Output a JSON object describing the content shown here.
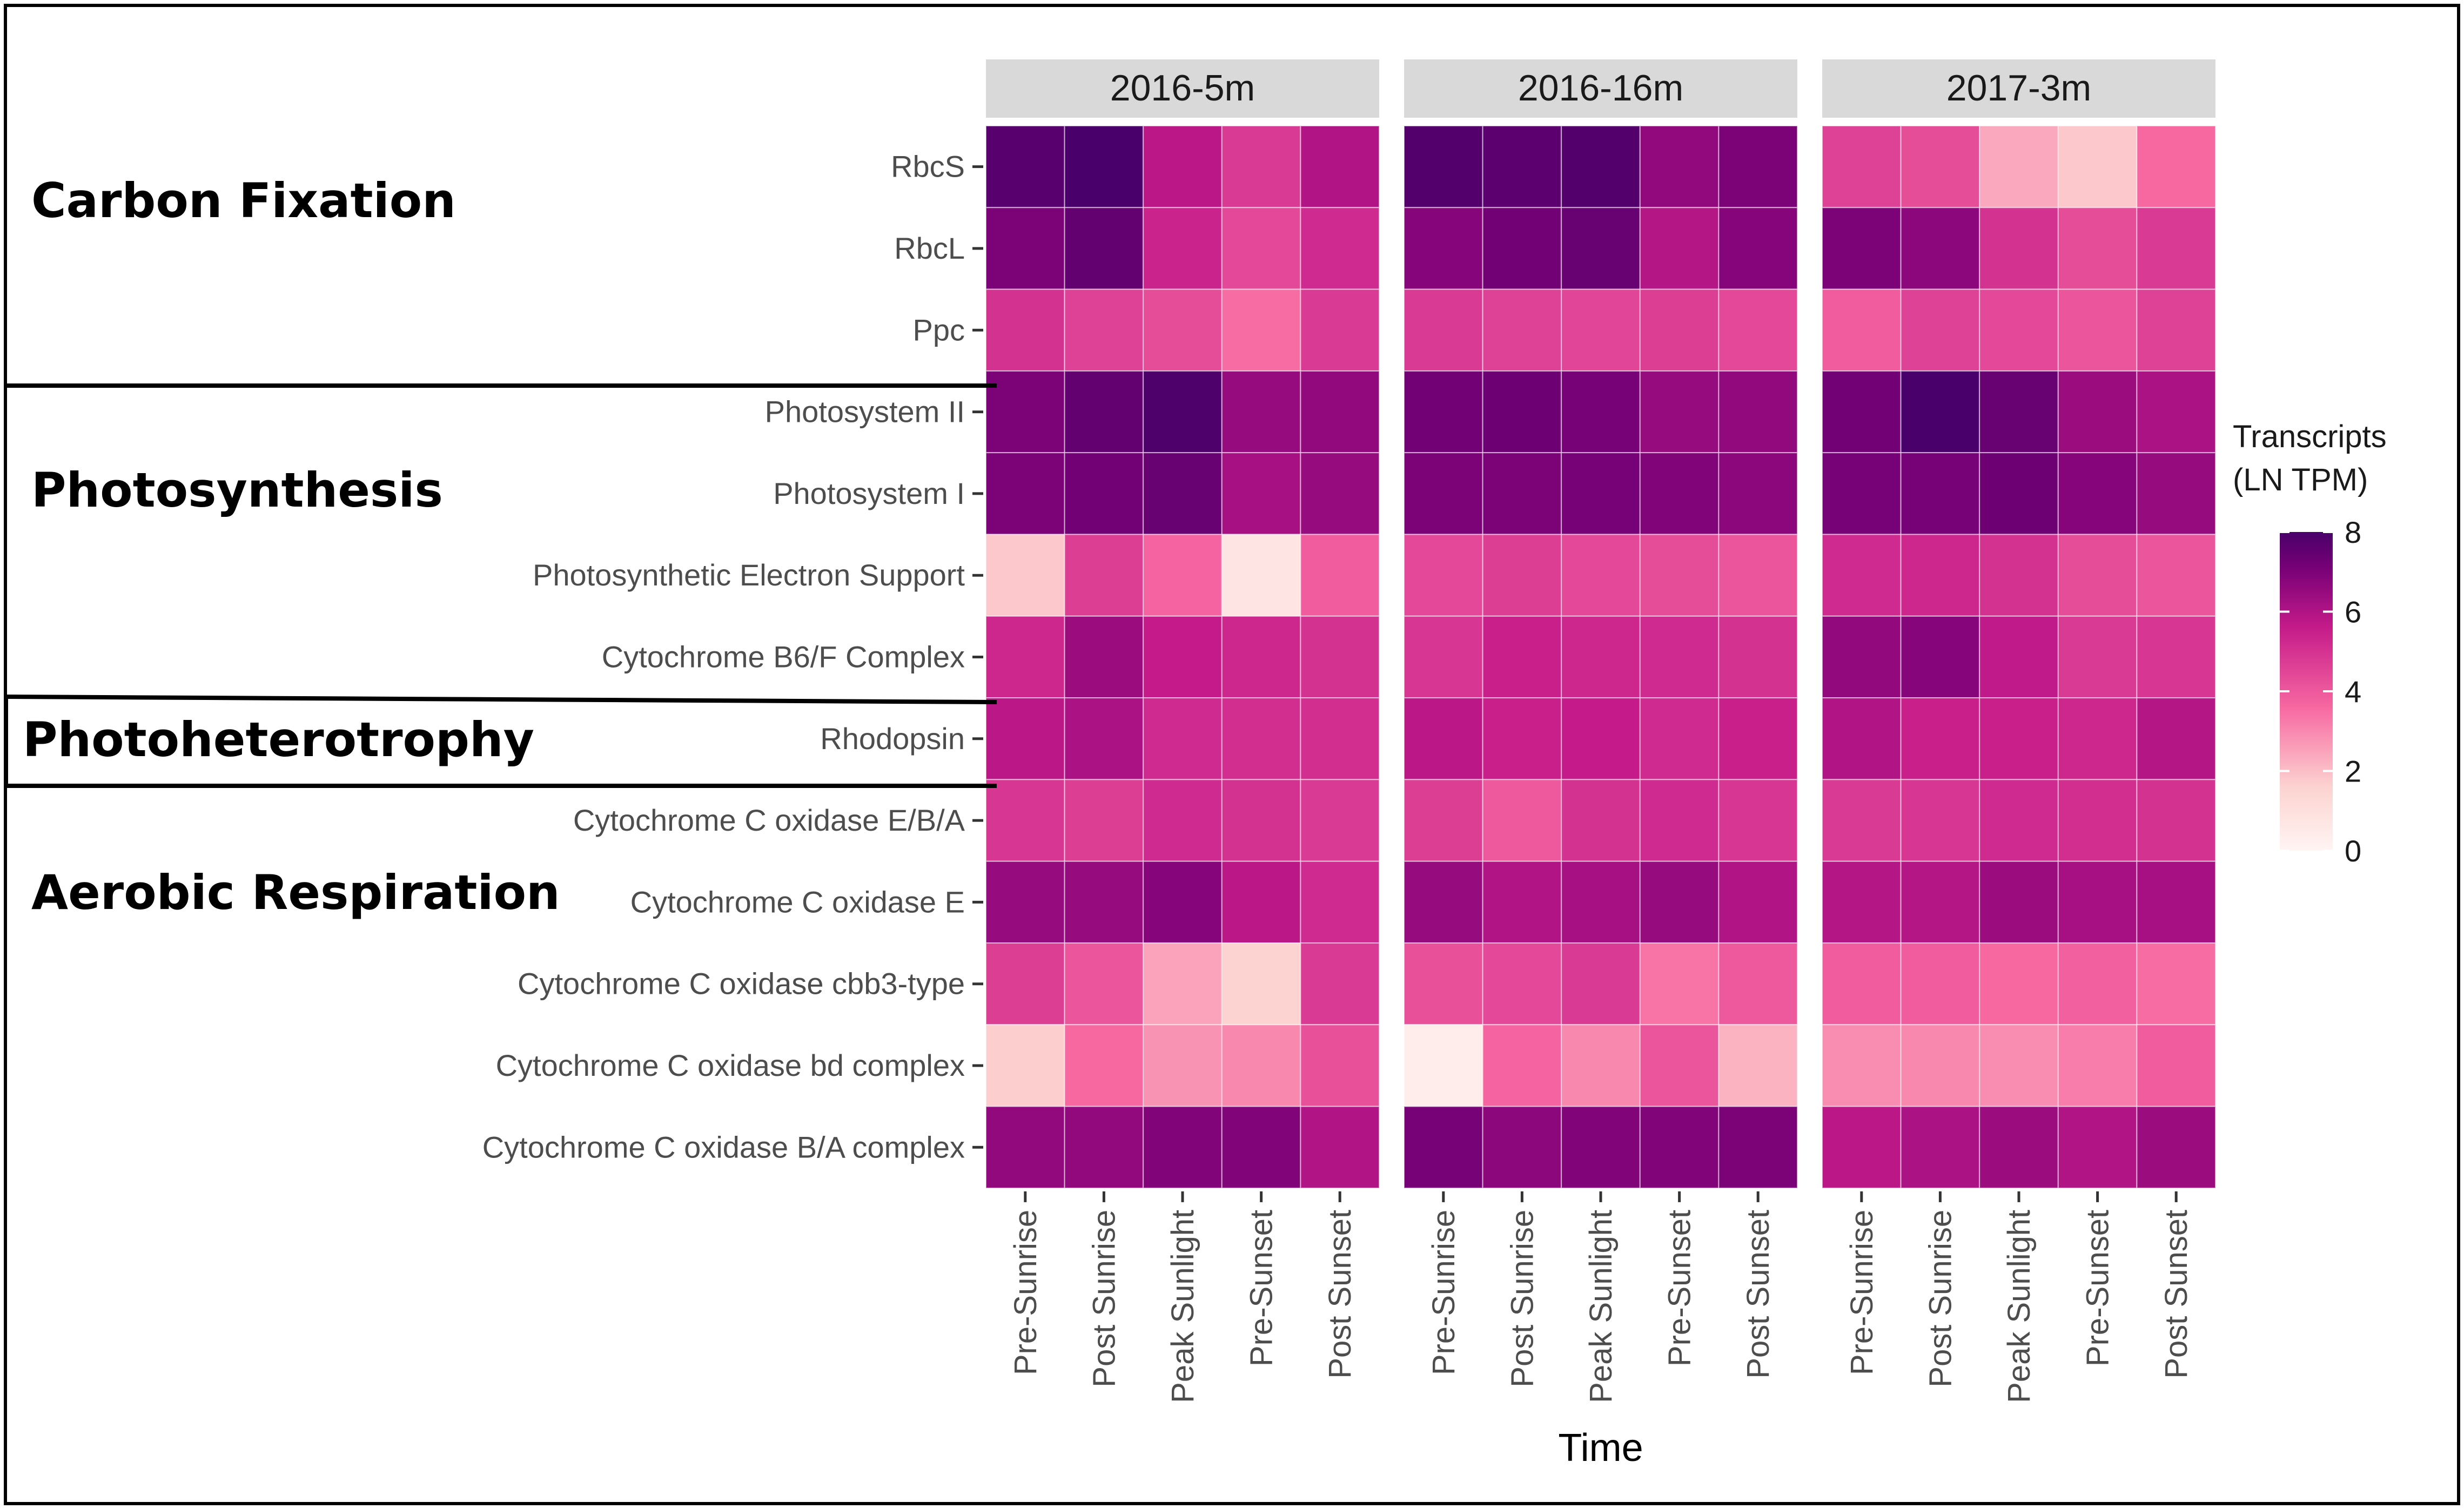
{
  "chart_data": {
    "type": "heatmap",
    "xlabel": "Time",
    "legend": {
      "title_line1": "Transcripts",
      "title_line2": "(LN TPM)",
      "min": 0,
      "max": 8,
      "ticks": [
        "0",
        "2",
        "4",
        "6",
        "8"
      ],
      "colors": [
        "#fff5f3",
        "#fbc5c5",
        "#f768a1",
        "#c51b8a",
        "#7a0177",
        "#49006a"
      ]
    },
    "panels": [
      "2016-5m",
      "2016-16m",
      "2017-3m"
    ],
    "columns": [
      "Pre-Sunrise",
      "Post Sunrise",
      "Peak Sunlight",
      "Pre-Sunset",
      "Post Sunset"
    ],
    "rows": [
      "RbcS",
      "RbcL",
      "Ppc",
      "Photosystem II",
      "Photosystem I",
      "Photosynthetic Electron Support",
      "Cytochrome B6/F Complex",
      "Rhodopsin",
      "Cytochrome C oxidase E/B/A",
      "Cytochrome C oxidase E",
      "Cytochrome C oxidase cbb3-type",
      "Cytochrome C oxidase bd complex",
      "Cytochrome C oxidase B/A complex"
    ],
    "groups": [
      {
        "label": "Carbon Fixation"
      },
      {
        "label": "Photosynthesis"
      },
      {
        "label": "Photoheterotrophy"
      },
      {
        "label": "Aerobic Respiration"
      }
    ],
    "values": [
      [
        [
          7.7,
          8.0,
          5.8,
          4.8,
          6.0
        ],
        [
          7.0,
          7.5,
          5.4,
          4.4,
          5.2
        ],
        [
          5.0,
          4.6,
          4.3,
          3.5,
          4.8
        ],
        [
          7.0,
          7.5,
          7.9,
          6.5,
          6.6
        ],
        [
          7.0,
          7.2,
          7.4,
          6.2,
          6.5
        ],
        [
          1.8,
          4.7,
          3.7,
          0.8,
          3.9
        ],
        [
          5.3,
          6.4,
          5.6,
          5.3,
          5.0
        ],
        [
          5.8,
          6.1,
          5.2,
          5.1,
          5.1
        ],
        [
          4.9,
          4.7,
          5.2,
          5.0,
          4.8
        ],
        [
          6.5,
          6.5,
          6.8,
          5.8,
          5.2
        ],
        [
          4.7,
          4.1,
          2.5,
          1.6,
          4.8
        ],
        [
          1.7,
          3.6,
          2.8,
          3.0,
          4.2
        ],
        [
          6.6,
          6.6,
          6.9,
          6.9,
          6.0
        ]
      ],
      [
        [
          7.8,
          7.6,
          7.8,
          6.6,
          7.0
        ],
        [
          6.8,
          7.2,
          7.4,
          5.9,
          6.8
        ],
        [
          4.8,
          4.6,
          4.5,
          4.7,
          4.4
        ],
        [
          7.2,
          7.3,
          7.1,
          6.5,
          6.6
        ],
        [
          7.0,
          7.0,
          7.1,
          6.9,
          6.7
        ],
        [
          4.4,
          4.7,
          4.4,
          4.3,
          4.1
        ],
        [
          4.9,
          5.5,
          5.3,
          5.2,
          5.0
        ],
        [
          5.8,
          5.5,
          5.6,
          5.2,
          5.5
        ],
        [
          4.7,
          4.0,
          5.0,
          5.2,
          4.9
        ],
        [
          6.5,
          6.0,
          6.2,
          6.5,
          6.0
        ],
        [
          4.2,
          4.4,
          4.8,
          3.4,
          4.0
        ],
        [
          0.4,
          3.7,
          3.0,
          4.1,
          2.2
        ],
        [
          7.1,
          6.7,
          6.9,
          6.9,
          7.0
        ]
      ],
      [
        [
          4.6,
          4.3,
          2.4,
          1.8,
          3.6
        ],
        [
          7.0,
          6.7,
          5.0,
          4.3,
          4.8
        ],
        [
          3.9,
          4.6,
          4.4,
          4.1,
          4.6
        ],
        [
          7.2,
          8.0,
          7.4,
          6.4,
          6.1
        ],
        [
          7.1,
          7.1,
          7.3,
          6.8,
          6.5
        ],
        [
          5.2,
          5.3,
          5.0,
          4.3,
          4.1
        ],
        [
          6.6,
          6.8,
          5.7,
          4.8,
          4.9
        ],
        [
          6.0,
          5.5,
          5.5,
          5.3,
          5.9
        ],
        [
          4.8,
          4.9,
          5.2,
          5.1,
          5.0
        ],
        [
          5.9,
          5.9,
          6.4,
          6.2,
          6.2
        ],
        [
          3.9,
          3.9,
          3.6,
          3.8,
          3.5
        ],
        [
          2.9,
          3.0,
          2.9,
          3.2,
          3.9
        ],
        [
          5.8,
          6.1,
          6.4,
          6.0,
          6.4
        ]
      ]
    ]
  }
}
